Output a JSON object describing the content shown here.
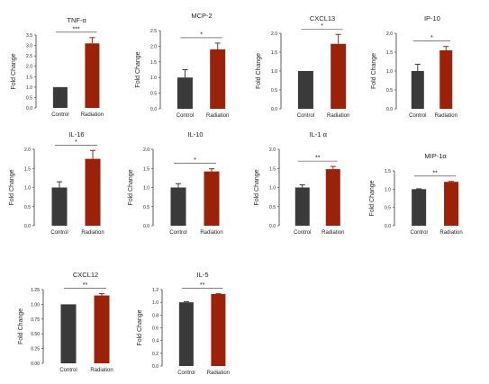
{
  "figure": {
    "y_axis_label": "Fold Change",
    "colors": {
      "control": "#3a3a3a",
      "radiation": "#9b2208",
      "axis": "#333333"
    }
  },
  "chart_data": [
    {
      "type": "bar",
      "title": "TNF-α",
      "categories": [
        "Control",
        "Radiation"
      ],
      "values": [
        1.0,
        3.1
      ],
      "errors": [
        0,
        0.28
      ],
      "ylabel": "Fold Change",
      "ylim": [
        0,
        3.5
      ],
      "yticks": [
        "0.0",
        "0.5",
        "1.0",
        "1.5",
        "2.0",
        "2.5",
        "3.0",
        "3.5"
      ],
      "significance": "***"
    },
    {
      "type": "bar",
      "title": "MCP-2",
      "categories": [
        "Control",
        "Radiation"
      ],
      "values": [
        1.0,
        1.9
      ],
      "errors": [
        0.25,
        0.2
      ],
      "ylabel": "Fold Change",
      "ylim": [
        0,
        2.5
      ],
      "yticks": [
        "0.0",
        "0.5",
        "1.0",
        "1.5",
        "2.0",
        "2.5"
      ],
      "significance": "*"
    },
    {
      "type": "bar",
      "title": "CXCL13",
      "categories": [
        "Control",
        "Radiation"
      ],
      "values": [
        1.0,
        1.72
      ],
      "errors": [
        0,
        0.25
      ],
      "ylabel": "Fold Change",
      "ylim": [
        0,
        2.0
      ],
      "yticks": [
        "0.0",
        "0.5",
        "1.0",
        "1.5",
        "2.0"
      ],
      "significance": "*"
    },
    {
      "type": "bar",
      "title": "IP-10",
      "categories": [
        "Control",
        "Radiation"
      ],
      "values": [
        1.0,
        1.55
      ],
      "errors": [
        0.18,
        0.1
      ],
      "ylabel": "Fold Change",
      "ylim": [
        0,
        2.0
      ],
      "yticks": [
        "0.0",
        "0.5",
        "1.0",
        "1.5",
        "2.0"
      ],
      "significance": "*"
    },
    {
      "type": "bar",
      "title": "IL-16",
      "categories": [
        "Control",
        "Radiation"
      ],
      "values": [
        1.0,
        1.75
      ],
      "errors": [
        0.15,
        0.22
      ],
      "ylabel": "Fold Change",
      "ylim": [
        0,
        2.0
      ],
      "yticks": [
        "0.0",
        "0.5",
        "1.0",
        "1.5",
        "2.0"
      ],
      "significance": "*"
    },
    {
      "type": "bar",
      "title": "IL-10",
      "categories": [
        "Control",
        "Radiation"
      ],
      "values": [
        1.0,
        1.42
      ],
      "errors": [
        0.1,
        0.07
      ],
      "ylabel": "Fold Change",
      "ylim": [
        0,
        2.0
      ],
      "yticks": [
        "0.0",
        "0.5",
        "1.0",
        "1.5",
        "2.0"
      ],
      "significance": "*"
    },
    {
      "type": "bar",
      "title": "IL-1 α",
      "categories": [
        "Control",
        "Radiation"
      ],
      "values": [
        1.0,
        1.48
      ],
      "errors": [
        0.07,
        0.07
      ],
      "ylabel": "Fold Change",
      "ylim": [
        0,
        2.0
      ],
      "yticks": [
        "0.0",
        "0.5",
        "1.0",
        "1.5",
        "2.0"
      ],
      "significance": "**"
    },
    {
      "type": "bar",
      "title": "MIP-1α",
      "categories": [
        "Control",
        "Radiation"
      ],
      "values": [
        1.0,
        1.2
      ],
      "errors": [
        0.01,
        0.01
      ],
      "ylabel": "Fold Change",
      "ylim": [
        0,
        1.5
      ],
      "yticks": [
        "0.0",
        "0.5",
        "1.0",
        "1.5"
      ],
      "significance": "**"
    },
    {
      "type": "bar",
      "title": "CXCL12",
      "categories": [
        "Control",
        "Radiation"
      ],
      "values": [
        1.0,
        1.15
      ],
      "errors": [
        0,
        0.03
      ],
      "ylabel": "Fold Change",
      "ylim": [
        0,
        1.25
      ],
      "yticks": [
        "0.00",
        "0.25",
        "0.50",
        "0.75",
        "1.00",
        "1.25"
      ],
      "significance": "**"
    },
    {
      "type": "bar",
      "title": "IL-5",
      "categories": [
        "Control",
        "Radiation"
      ],
      "values": [
        1.0,
        1.13
      ],
      "errors": [
        0.01,
        0.005
      ],
      "ylabel": "Fold Change",
      "ylim": [
        0,
        1.2
      ],
      "yticks": [
        "0.0",
        "0.2",
        "0.4",
        "0.6",
        "0.8",
        "1.0",
        "1.2"
      ],
      "significance": "**"
    }
  ]
}
